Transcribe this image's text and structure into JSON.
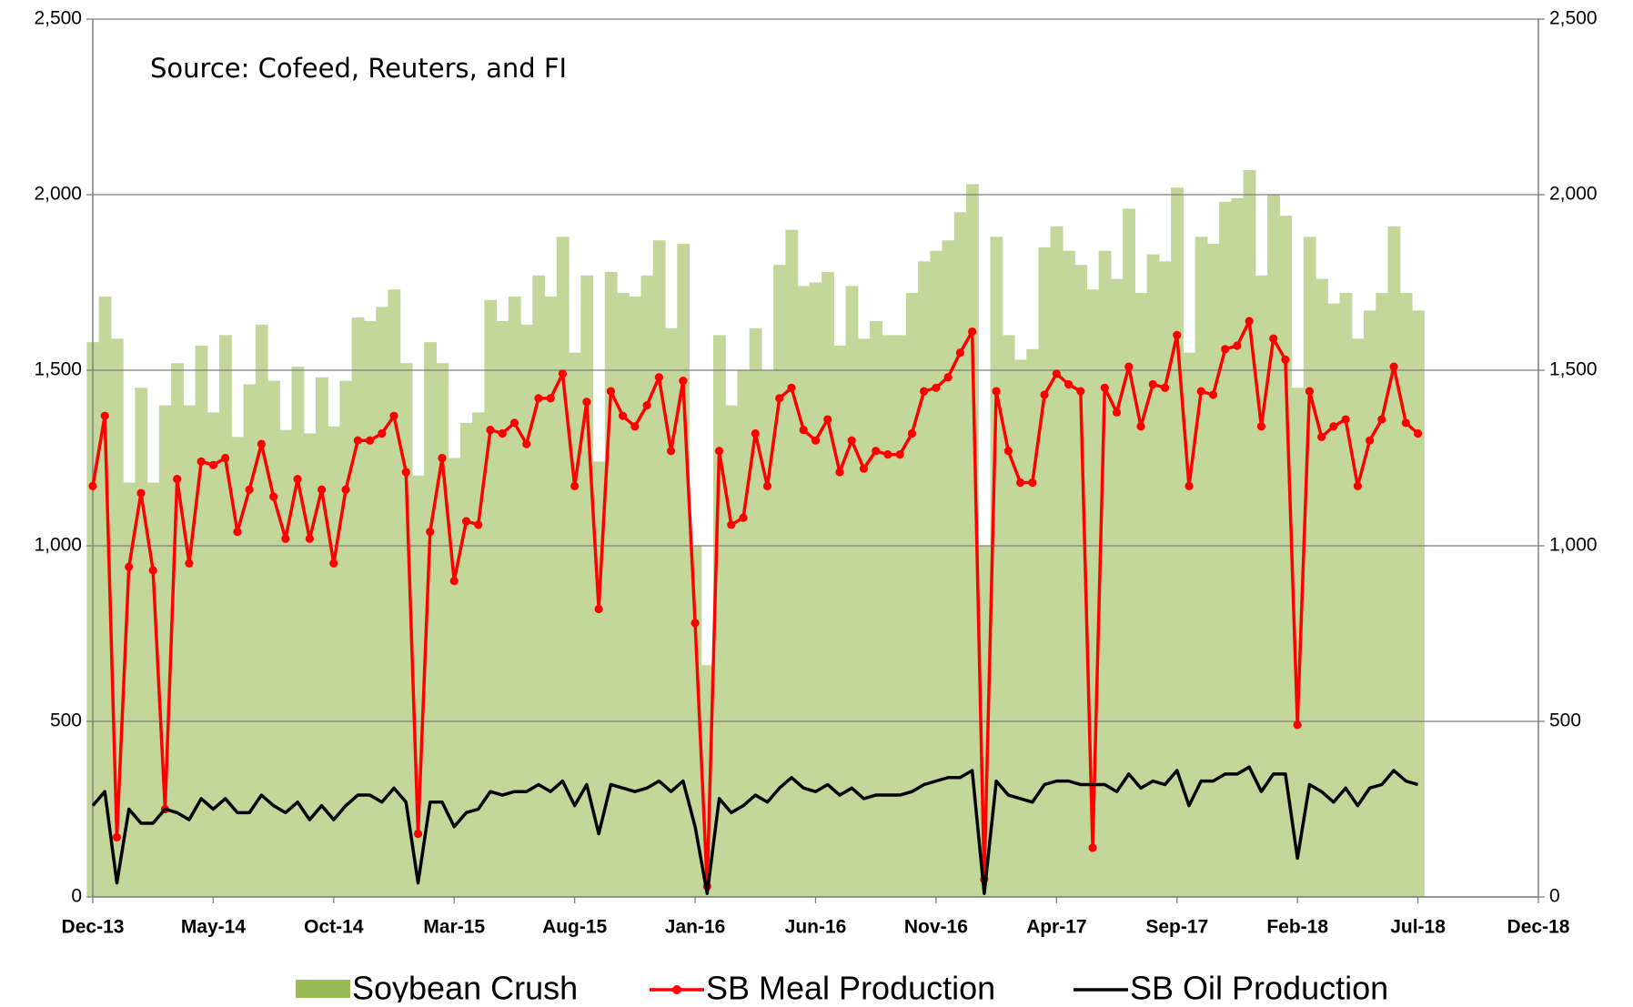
{
  "chart_data": {
    "type": "bar-line",
    "annotation": "Source: Cofeed, Reuters, and FI",
    "categories": [
      "Dec-13",
      null,
      null,
      null,
      null,
      null,
      null,
      null,
      null,
      null,
      "May-14",
      null,
      null,
      null,
      null,
      null,
      null,
      null,
      null,
      null,
      "Oct-14",
      null,
      null,
      null,
      null,
      null,
      null,
      null,
      null,
      null,
      "Mar-15",
      null,
      null,
      null,
      null,
      null,
      null,
      null,
      null,
      null,
      "Aug-15",
      null,
      null,
      null,
      null,
      null,
      null,
      null,
      null,
      null,
      "Jan-16",
      null,
      null,
      null,
      null,
      null,
      null,
      null,
      null,
      null,
      "Jun-16",
      null,
      null,
      null,
      null,
      null,
      null,
      null,
      null,
      null,
      "Nov-16",
      null,
      null,
      null,
      null,
      null,
      null,
      null,
      null,
      null,
      "Apr-17",
      null,
      null,
      null,
      null,
      null,
      null,
      null,
      null,
      null,
      "Sep-17",
      null,
      null,
      null,
      null,
      null,
      null,
      null,
      null,
      null,
      "Feb-18",
      null,
      null,
      null,
      null,
      null,
      null,
      null,
      null,
      null,
      "Jul-18",
      null,
      null,
      null,
      null,
      null,
      null,
      null,
      null,
      null,
      "Dec-18"
    ],
    "series": [
      {
        "name": "Soybean Crush",
        "kind": "bar",
        "color": "#c4d79b",
        "legend_color": "#9bbb59",
        "values": [
          1580,
          1710,
          1590,
          1180,
          1450,
          1180,
          1400,
          1520,
          1400,
          1570,
          1380,
          1600,
          1310,
          1460,
          1630,
          1470,
          1330,
          1510,
          1320,
          1480,
          1340,
          1470,
          1650,
          1640,
          1680,
          1730,
          1520,
          1200,
          1580,
          1520,
          1250,
          1350,
          1380,
          1700,
          1640,
          1710,
          1630,
          1770,
          1710,
          1880,
          1550,
          1770,
          1240,
          1780,
          1720,
          1710,
          1770,
          1870,
          1620,
          1860,
          1000,
          660,
          1600,
          1400,
          1500,
          1620,
          1500,
          1800,
          1900,
          1740,
          1750,
          1780,
          1570,
          1740,
          1590,
          1640,
          1600,
          1600,
          1720,
          1810,
          1840,
          1870,
          1950,
          2030,
          1000,
          1880,
          1600,
          1530,
          1560,
          1850,
          1910,
          1840,
          1800,
          1730,
          1840,
          1760,
          1960,
          1720,
          1830,
          1810,
          2020,
          1550,
          1880,
          1860,
          1980,
          1990,
          2070,
          1770,
          2000,
          1940,
          1450,
          1880,
          1760,
          1690,
          1720,
          1590,
          1670,
          1720,
          1910,
          1720,
          1670,
          null,
          null,
          null,
          null,
          null,
          null,
          null,
          null,
          null,
          null
        ]
      },
      {
        "name": "SB Meal Production",
        "kind": "line-marker",
        "color": "#ff0000",
        "values": [
          1170,
          1370,
          170,
          940,
          1150,
          930,
          250,
          1190,
          950,
          1240,
          1230,
          1250,
          1040,
          1160,
          1290,
          1140,
          1020,
          1190,
          1020,
          1160,
          950,
          1160,
          1300,
          1300,
          1320,
          1370,
          1210,
          180,
          1040,
          1250,
          900,
          1070,
          1060,
          1330,
          1320,
          1350,
          1290,
          1420,
          1420,
          1490,
          1170,
          1410,
          820,
          1440,
          1370,
          1340,
          1400,
          1480,
          1270,
          1470,
          780,
          30,
          1270,
          1060,
          1080,
          1320,
          1170,
          1420,
          1450,
          1330,
          1300,
          1360,
          1210,
          1300,
          1220,
          1270,
          1260,
          1260,
          1320,
          1440,
          1450,
          1480,
          1550,
          1610,
          50,
          1440,
          1270,
          1180,
          1180,
          1430,
          1490,
          1460,
          1440,
          140,
          1450,
          1380,
          1510,
          1340,
          1460,
          1450,
          1600,
          1170,
          1440,
          1430,
          1560,
          1570,
          1640,
          1340,
          1590,
          1530,
          490,
          1440,
          1310,
          1340,
          1360,
          1170,
          1300,
          1360,
          1510,
          1350,
          1320,
          null,
          null,
          null,
          null,
          null,
          null,
          null,
          null,
          null,
          null
        ]
      },
      {
        "name": "SB Oil Production",
        "kind": "line",
        "color": "#000000",
        "values": [
          260,
          300,
          40,
          250,
          210,
          210,
          250,
          240,
          220,
          280,
          250,
          280,
          240,
          240,
          290,
          260,
          240,
          270,
          220,
          260,
          220,
          260,
          290,
          290,
          270,
          310,
          270,
          40,
          270,
          270,
          200,
          240,
          250,
          300,
          290,
          300,
          300,
          320,
          300,
          330,
          260,
          320,
          180,
          320,
          310,
          300,
          310,
          330,
          300,
          330,
          200,
          10,
          280,
          240,
          260,
          290,
          270,
          310,
          340,
          310,
          300,
          320,
          290,
          310,
          280,
          290,
          290,
          290,
          300,
          320,
          330,
          340,
          340,
          360,
          10,
          330,
          290,
          280,
          270,
          320,
          330,
          330,
          320,
          320,
          320,
          300,
          350,
          310,
          330,
          320,
          360,
          260,
          330,
          330,
          350,
          350,
          370,
          300,
          350,
          350,
          110,
          320,
          300,
          270,
          310,
          260,
          310,
          320,
          360,
          330,
          320,
          null,
          null,
          null,
          null,
          null,
          null,
          null,
          null,
          null,
          null
        ]
      }
    ],
    "ylim": [
      0,
      2500
    ],
    "yticks": [
      0,
      500,
      {
        "value": 1000,
        "label": "1,000"
      },
      {
        "value": 1500,
        "label": "1,500"
      },
      {
        "value": 2000,
        "label": "2,000"
      },
      {
        "value": 2500,
        "label": "2,500"
      }
    ],
    "y2lim": [
      0,
      2500
    ],
    "y2ticks": [
      0,
      500,
      {
        "value": 1000,
        "label": "1,000"
      },
      {
        "value": 1500,
        "label": "1,500"
      },
      {
        "value": 2000,
        "label": "2,000"
      },
      {
        "value": 2500,
        "label": "2,500"
      }
    ],
    "grid": true,
    "legend": "bottom"
  }
}
